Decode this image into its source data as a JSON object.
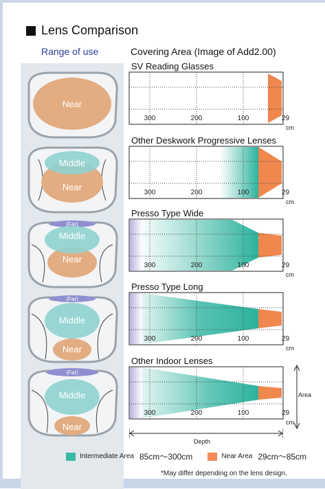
{
  "title": "Lens Comparison",
  "range_of_use_heading": "Range of use",
  "covering_heading": "Covering Area (Image of Add2.00)",
  "lens_labels": {
    "far": "(Far)",
    "middle": "Middle",
    "near": "Near"
  },
  "axis": {
    "ticks": [
      "300",
      "200",
      "100",
      "29"
    ],
    "unit": "cm",
    "area_label": "Area",
    "depth_label": "Depth"
  },
  "lenses": [
    {
      "name": "SV Reading Glasses",
      "zones": [
        "near"
      ]
    },
    {
      "name": "Other Deskwork Progressive Lenses",
      "zones": [
        "middle",
        "near"
      ]
    },
    {
      "name": "Presso Type Wide",
      "zones": [
        "far",
        "middle",
        "near"
      ]
    },
    {
      "name": "Presso Type Long",
      "zones": [
        "far",
        "middle",
        "near"
      ]
    },
    {
      "name": "Other Indoor Lenses",
      "zones": [
        "far",
        "middle",
        "near"
      ]
    }
  ],
  "legend": {
    "intermediate_label": "Intermediate Area",
    "intermediate_range": "85cm～300cm",
    "intermediate_color": "#3ab8a4",
    "near_label": "Near Area",
    "near_range": "29cm～85cm",
    "near_color": "#f28a5a"
  },
  "note": "*May differ depending on the lens design."
}
